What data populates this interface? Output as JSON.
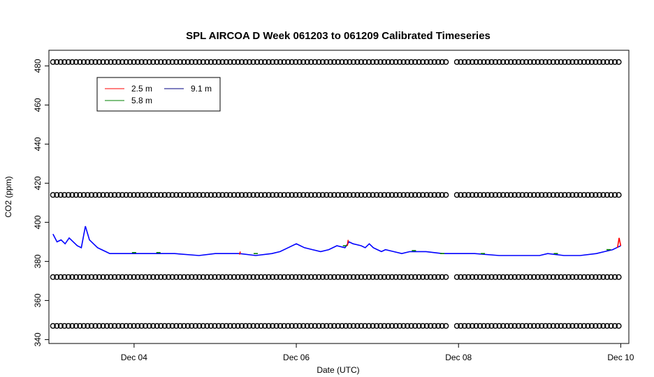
{
  "chart_data": {
    "type": "line",
    "title": "SPL AIRCOA D  Week 061203 to 061209  Calibrated Timeseries",
    "xlabel": "Date (UTC)",
    "ylabel": "CO2 (ppm)",
    "xlim": [
      2.95,
      10.1
    ],
    "ylim": [
      338,
      488
    ],
    "x_ticks": [
      {
        "value": 4,
        "label": "Dec 04"
      },
      {
        "value": 6,
        "label": "Dec 06"
      },
      {
        "value": 8,
        "label": "Dec 08"
      },
      {
        "value": 10,
        "label": "Dec 10"
      }
    ],
    "y_ticks": [
      340,
      360,
      380,
      400,
      420,
      440,
      460,
      480
    ],
    "legend": {
      "position": "top-left",
      "entries": [
        {
          "label": "2.5 m",
          "color": "#ff0000"
        },
        {
          "label": "9.1 m",
          "color": "#000080"
        },
        {
          "label": "5.8 m",
          "color": "#008000"
        }
      ]
    },
    "series": [
      {
        "name": "9.1 m",
        "color": "#0000ff",
        "x": [
          3.0,
          3.05,
          3.1,
          3.15,
          3.2,
          3.25,
          3.3,
          3.35,
          3.4,
          3.45,
          3.5,
          3.55,
          3.6,
          3.65,
          3.7,
          3.8,
          4.0,
          4.2,
          4.5,
          4.8,
          5.0,
          5.3,
          5.5,
          5.7,
          5.8,
          5.9,
          6.0,
          6.05,
          6.1,
          6.2,
          6.3,
          6.4,
          6.5,
          6.6,
          6.65,
          6.7,
          6.8,
          6.85,
          6.9,
          6.95,
          7.0,
          7.05,
          7.1,
          7.2,
          7.3,
          7.4,
          7.6,
          7.8,
          8.0,
          8.2,
          8.5,
          8.8,
          9.0,
          9.1,
          9.3,
          9.5,
          9.7,
          9.8,
          9.9,
          9.95,
          10.0
        ],
        "values": [
          394,
          390,
          391,
          389,
          392,
          390,
          388,
          387,
          398,
          391,
          389,
          387,
          386,
          385,
          384,
          384,
          384,
          384,
          384,
          383,
          384,
          384,
          383,
          384,
          385,
          387,
          389,
          388,
          387,
          386,
          385,
          386,
          388,
          387,
          390,
          389,
          388,
          387,
          389,
          387,
          386,
          385,
          386,
          385,
          384,
          385,
          385,
          384,
          384,
          384,
          383,
          383,
          383,
          384,
          383,
          383,
          384,
          385,
          386,
          387,
          388
        ]
      },
      {
        "name": "2.5 m",
        "color": "#ff0000",
        "x": [
          5.3,
          5.31,
          6.63,
          6.64,
          9.96,
          9.98,
          10.0
        ],
        "values": [
          383.5,
          385,
          388,
          391,
          387,
          392,
          388
        ]
      },
      {
        "name": "5.8 m",
        "color": "#008000",
        "x": [
          4.0,
          4.3,
          5.5,
          6.6,
          7.45,
          7.8,
          8.3,
          9.2,
          9.85
        ],
        "values": [
          384.5,
          384.5,
          384,
          388,
          385.5,
          384,
          384,
          384,
          386
        ]
      }
    ],
    "calibration_series": [
      {
        "name": "cal-482",
        "values": 482
      },
      {
        "name": "cal-414",
        "values": 414
      },
      {
        "name": "cal-372",
        "values": 372
      },
      {
        "name": "cal-347",
        "values": 347
      }
    ],
    "calibration_x_ranges": [
      [
        3.0,
        7.87
      ],
      [
        7.98,
        10.0
      ]
    ],
    "grid": false
  }
}
